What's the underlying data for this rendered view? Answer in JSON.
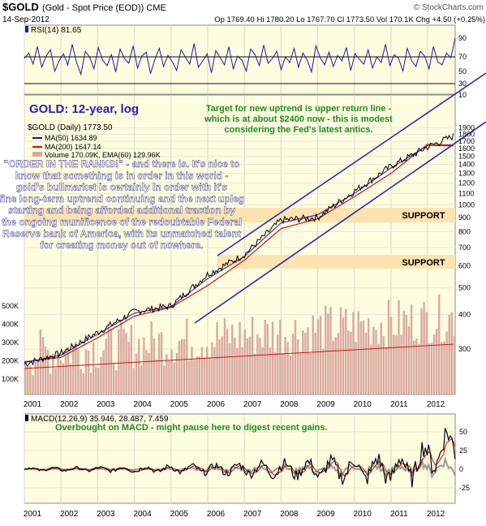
{
  "header": {
    "symbol": "$GOLD",
    "description": "(Gold - Spot Price (EOD)) CME",
    "brand": "© StockCharts.com",
    "date": "14-Sep-2012",
    "ohlc": "Op 1769.40   Hi 1780.20   Lo 1767.70   Cl 1773.50   Vol 170.1K   Chg +4.50 (+0.25%)"
  },
  "rsi_panel": {
    "label": "RSI(14) 81.65",
    "right_ticks": [
      "90",
      "70",
      "50",
      "30",
      "10"
    ],
    "levels": [
      70,
      30
    ],
    "values": [
      55,
      62,
      48,
      70,
      44,
      58,
      66,
      39,
      52,
      61,
      47,
      73,
      50,
      35,
      64,
      57,
      42,
      69,
      53,
      46,
      60,
      38,
      67,
      55,
      49,
      71,
      43,
      58,
      63,
      36,
      54,
      68,
      45,
      59,
      51,
      40,
      66,
      57,
      48,
      74,
      44,
      52,
      61,
      37,
      65,
      56,
      47,
      70,
      42,
      58,
      53,
      39,
      67,
      60,
      46,
      72,
      49,
      55,
      64,
      41,
      57,
      50,
      68,
      44,
      62,
      53,
      38,
      71,
      56,
      47,
      63,
      45,
      59,
      52,
      69,
      40,
      61,
      54,
      48,
      66,
      43,
      57,
      50,
      73,
      46,
      60,
      55,
      39,
      68,
      52,
      45,
      64,
      58,
      42,
      70,
      51,
      47,
      62,
      56,
      81
    ]
  },
  "price_panel": {
    "title": "GOLD: 12-year, log",
    "annotation_target": "Target for new uptrend is upper return line - which is at about $2400 now - this is modest considering the Fed's latest antics.",
    "legend": {
      "main": "$GOLD (Daily) 1773.50",
      "ma50": "MA(50) 1634.89",
      "ma200": "MA(200) 1647.14",
      "volume": "Volume 170.09K, EMA(60) 129.96K"
    },
    "commentary": "\"ORDER IN THE RANKS!\" - and there is. It's nice to know that something is in order in this world - gold's bullmarket is certainly in order with it's fine long-term uptrend continuing and the next upleg starting and being afforded additional traction by the ongoing munificence of the redoubtable Federal Reserve bank of America, with its unmatched talent for creating money out of nowhere.",
    "support_labels": [
      "SUPPORT",
      "SUPPORT"
    ],
    "right_ticks": [
      "1900",
      "1800",
      "1700",
      "1600",
      "1500",
      "1400",
      "1300",
      "1200",
      "1100",
      "1000",
      "900",
      "800",
      "700",
      "600",
      "500",
      "400",
      "300"
    ],
    "volume_ticks": [
      "500K",
      "400K",
      "300K",
      "200K",
      "100K"
    ],
    "x_labels": [
      "2001",
      "2002",
      "2003",
      "2004",
      "2005",
      "2006",
      "2007",
      "2008",
      "2009",
      "2010",
      "2011",
      "2012"
    ]
  },
  "macd_panel": {
    "label": "MACD(12,26,9) 35.946, 28.487, 7.459",
    "annotation": "Overbought on MACD - might pause here to digest recent gains.",
    "right_ticks": [
      "50",
      "25",
      "0",
      "-25"
    ],
    "x_labels": [
      "2001",
      "2002",
      "2003",
      "2004",
      "2005",
      "2006",
      "2007",
      "2008",
      "2009",
      "2010",
      "2011",
      "2012"
    ]
  },
  "colors": {
    "panel_bg": "#fffde0",
    "annotation": "#1f8a1f",
    "title": "#2222bb",
    "commentary": "#ffffff",
    "trendline": "#2a2ab0",
    "ma50": "#1a1ab0",
    "ma200": "#cc1111",
    "support_band": "#fde3b0",
    "volume": "#d9a9a0"
  },
  "chart_data": {
    "type": "line",
    "title": "GOLD: 12-year, log",
    "scale": "log",
    "x": [
      2001,
      2002,
      2003,
      2004,
      2005,
      2006,
      2007,
      2008,
      2009,
      2010,
      2011,
      2012,
      2012.7
    ],
    "series": [
      {
        "name": "$GOLD (Daily) 1773.50",
        "values": [
          265,
          290,
          345,
          410,
          430,
          560,
          660,
          880,
          900,
          1120,
          1380,
          1620,
          1773.5
        ]
      },
      {
        "name": "MA(50) 1634.89",
        "values": [
          268,
          285,
          340,
          405,
          428,
          540,
          650,
          860,
          920,
          1100,
          1360,
          1640,
          1634.89
        ]
      },
      {
        "name": "MA(200) 1647.14",
        "values": [
          270,
          280,
          330,
          395,
          425,
          510,
          630,
          820,
          890,
          1070,
          1300,
          1660,
          1647.14
        ]
      }
    ],
    "ylim": [
      250,
      2000
    ],
    "support_levels": [
      1000,
      700
    ],
    "grid": true
  }
}
